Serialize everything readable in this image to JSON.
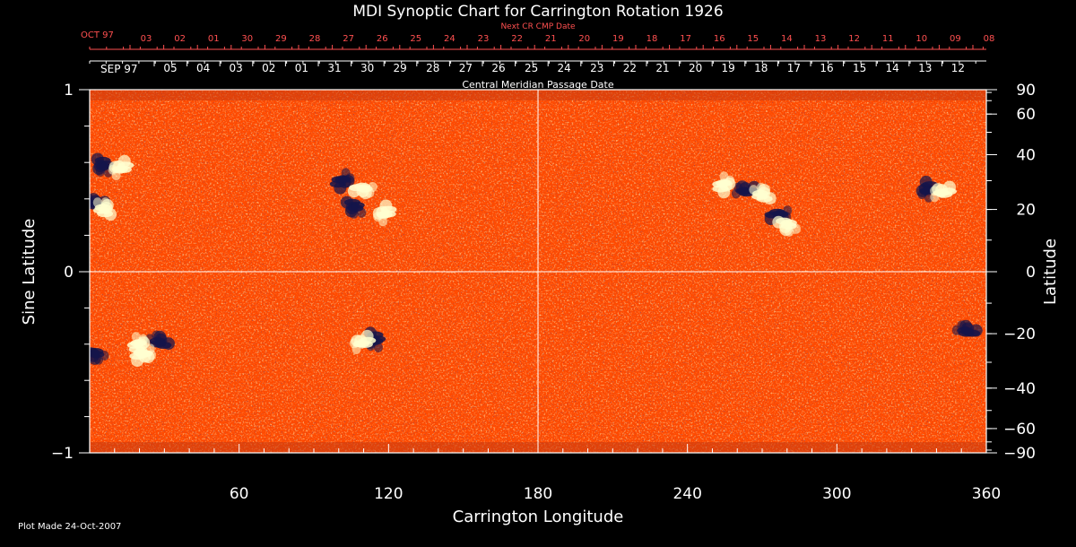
{
  "chart_data": {
    "type": "heatmap",
    "title": "MDI Synoptic Chart for Carrington Rotation 1926",
    "xlabel": "Carrington Longitude",
    "ylabel_left": "Sine Latitude",
    "ylabel_right": "Latitude",
    "xlim": [
      0,
      360
    ],
    "ylim": [
      -1,
      1
    ],
    "x_ticks": [
      60,
      120,
      180,
      240,
      300,
      360
    ],
    "y_ticks_left": [
      {
        "v": 1,
        "label": "1"
      },
      {
        "v": 0,
        "label": "0"
      },
      {
        "v": -1,
        "label": "−1"
      }
    ],
    "y_ticks_right": [
      90,
      60,
      40,
      20,
      0,
      -20,
      -40,
      -60,
      -90
    ],
    "y_ticks_right_labels": [
      "90",
      "60",
      "40",
      "20",
      "0",
      "−20",
      "−40",
      "−60",
      "−90"
    ],
    "grid_lines": {
      "longitude": 180,
      "sine_latitude": 0
    },
    "colors": {
      "background": "#000000",
      "base": "#ff4a00",
      "positive": "#ffffd0",
      "negative": "#14144a",
      "grid": "#ffffff",
      "top_axis": "#ff5050"
    },
    "top_axis_label": "Next CR CMP Date",
    "top_axis_start": "OCT 97",
    "top_axis_dates": [
      "03",
      "02",
      "01",
      "30",
      "29",
      "28",
      "27",
      "26",
      "25",
      "24",
      "23",
      "22",
      "21",
      "20",
      "19",
      "18",
      "17",
      "16",
      "15",
      "14",
      "13",
      "12",
      "11",
      "10",
      "09",
      "08"
    ],
    "cmp_axis_label": "Central Meridian Passage Date",
    "cmp_axis_start": "SEP 97",
    "cmp_axis_dates": [
      "05",
      "04",
      "03",
      "02",
      "01",
      "31",
      "30",
      "29",
      "28",
      "27",
      "26",
      "25",
      "24",
      "23",
      "22",
      "21",
      "20",
      "19",
      "18",
      "17",
      "16",
      "15",
      "14",
      "13",
      "12"
    ],
    "active_regions": [
      {
        "lon": 5,
        "sinlat": 0.58,
        "polarity": "negative"
      },
      {
        "lon": 12,
        "sinlat": 0.57,
        "polarity": "positive"
      },
      {
        "lon": 2,
        "sinlat": 0.38,
        "polarity": "negative"
      },
      {
        "lon": 6,
        "sinlat": 0.35,
        "polarity": "positive"
      },
      {
        "lon": 102,
        "sinlat": 0.5,
        "polarity": "negative"
      },
      {
        "lon": 110,
        "sinlat": 0.45,
        "polarity": "positive"
      },
      {
        "lon": 106,
        "sinlat": 0.35,
        "polarity": "negative"
      },
      {
        "lon": 118,
        "sinlat": 0.32,
        "polarity": "positive"
      },
      {
        "lon": 263,
        "sinlat": 0.45,
        "polarity": "negative"
      },
      {
        "lon": 270,
        "sinlat": 0.43,
        "polarity": "positive"
      },
      {
        "lon": 255,
        "sinlat": 0.48,
        "polarity": "positive"
      },
      {
        "lon": 277,
        "sinlat": 0.31,
        "polarity": "negative"
      },
      {
        "lon": 280,
        "sinlat": 0.25,
        "polarity": "positive"
      },
      {
        "lon": 336,
        "sinlat": 0.45,
        "polarity": "negative"
      },
      {
        "lon": 342,
        "sinlat": 0.44,
        "polarity": "positive"
      },
      {
        "lon": 28,
        "sinlat": -0.38,
        "polarity": "negative"
      },
      {
        "lon": 20,
        "sinlat": -0.4,
        "polarity": "positive"
      },
      {
        "lon": 22,
        "sinlat": -0.46,
        "polarity": "positive"
      },
      {
        "lon": 2,
        "sinlat": -0.46,
        "polarity": "negative"
      },
      {
        "lon": 114,
        "sinlat": -0.38,
        "polarity": "negative"
      },
      {
        "lon": 109,
        "sinlat": -0.39,
        "polarity": "positive"
      },
      {
        "lon": 352,
        "sinlat": -0.32,
        "polarity": "negative"
      }
    ],
    "footer": "Plot Made 24-Oct-2007"
  }
}
